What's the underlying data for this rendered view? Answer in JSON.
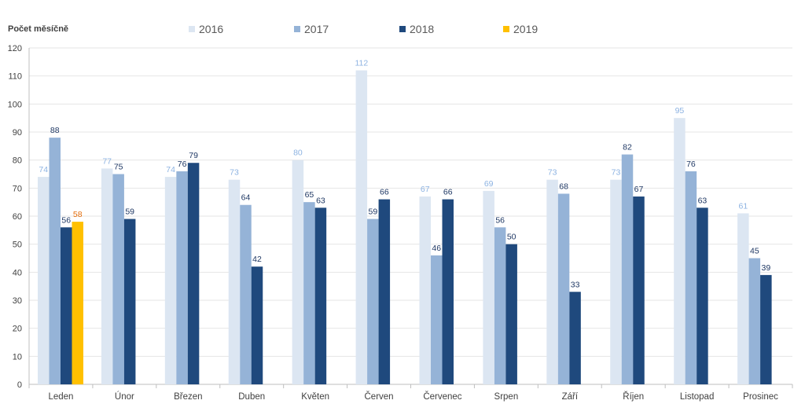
{
  "chart_data": {
    "type": "bar",
    "title": "",
    "ylabel": "Počet měsíčně",
    "xlabel": "",
    "ylim": [
      0,
      120
    ],
    "ytick_step": 10,
    "grid": true,
    "legend_position": "top",
    "categories": [
      "Leden",
      "Únor",
      "Březen",
      "Duben",
      "Květen",
      "Červen",
      "Červenec",
      "Srpen",
      "Září",
      "Říjen",
      "Listopad",
      "Prosinec"
    ],
    "series": [
      {
        "name": "2016",
        "color": "#dce6f2",
        "label_color": "#8db3e2",
        "values": [
          74,
          77,
          74,
          73,
          80,
          112,
          67,
          69,
          73,
          73,
          95,
          61
        ]
      },
      {
        "name": "2017",
        "color": "#95b3d7",
        "label_color": "#1f3864",
        "values": [
          88,
          75,
          76,
          64,
          65,
          59,
          46,
          56,
          68,
          82,
          76,
          45
        ]
      },
      {
        "name": "2018",
        "color": "#1f497d",
        "label_color": "#1f3864",
        "values": [
          56,
          59,
          79,
          42,
          63,
          66,
          66,
          50,
          33,
          67,
          63,
          39
        ]
      },
      {
        "name": "2019",
        "color": "#ffc000",
        "label_color": "#e46c0a",
        "values": [
          58,
          null,
          null,
          null,
          null,
          null,
          null,
          null,
          null,
          null,
          null,
          null
        ]
      }
    ]
  }
}
